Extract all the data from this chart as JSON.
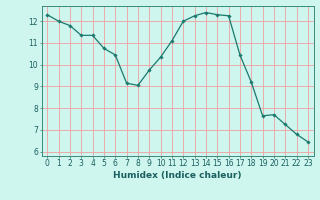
{
  "x": [
    0,
    1,
    2,
    3,
    4,
    5,
    6,
    7,
    8,
    9,
    10,
    11,
    12,
    13,
    14,
    15,
    16,
    17,
    18,
    19,
    20,
    21,
    22,
    23
  ],
  "y": [
    12.3,
    12.0,
    11.8,
    11.35,
    11.35,
    10.75,
    10.45,
    9.15,
    9.05,
    9.75,
    10.35,
    11.1,
    12.0,
    12.25,
    12.4,
    12.3,
    12.25,
    10.45,
    9.2,
    7.65,
    7.7,
    7.25,
    6.8,
    6.45
  ],
  "line_color": "#1a7a6e",
  "marker": "D",
  "marker_size": 1.8,
  "bg_color": "#cef5ee",
  "grid_color": "#f0a0a0",
  "xlabel": "Humidex (Indice chaleur)",
  "xlim": [
    -0.5,
    23.5
  ],
  "ylim": [
    5.8,
    12.7
  ],
  "xticks": [
    0,
    1,
    2,
    3,
    4,
    5,
    6,
    7,
    8,
    9,
    10,
    11,
    12,
    13,
    14,
    15,
    16,
    17,
    18,
    19,
    20,
    21,
    22,
    23
  ],
  "yticks": [
    6,
    7,
    8,
    9,
    10,
    11,
    12
  ],
  "label_fontsize": 6.5,
  "tick_fontsize": 5.5,
  "tick_color": "#1a6060",
  "spine_color": "#3a8a7a",
  "line_width": 0.9
}
